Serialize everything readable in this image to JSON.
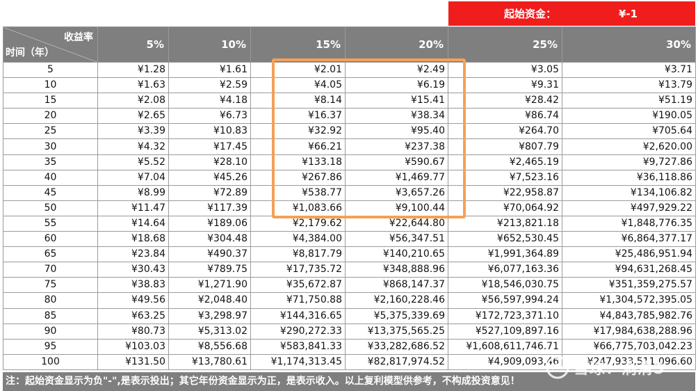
{
  "starting_capital": {
    "label": "起始资金：",
    "value": "¥-1"
  },
  "corner_header": {
    "top": "收益率",
    "bottom": "时间（年）"
  },
  "rate_headers": [
    "5%",
    "10%",
    "15%",
    "20%",
    "25%",
    "30%"
  ],
  "rows": [
    {
      "year": "5",
      "values": [
        "¥1.28",
        "¥1.61",
        "¥2.01",
        "¥2.49",
        "¥3.05",
        "¥3.71"
      ]
    },
    {
      "year": "10",
      "values": [
        "¥1.63",
        "¥2.59",
        "¥4.05",
        "¥6.19",
        "¥9.31",
        "¥13.79"
      ]
    },
    {
      "year": "15",
      "values": [
        "¥2.08",
        "¥4.18",
        "¥8.14",
        "¥15.41",
        "¥28.42",
        "¥51.19"
      ]
    },
    {
      "year": "20",
      "values": [
        "¥2.65",
        "¥6.73",
        "¥16.37",
        "¥38.34",
        "¥86.74",
        "¥190.05"
      ]
    },
    {
      "year": "25",
      "values": [
        "¥3.39",
        "¥10.83",
        "¥32.92",
        "¥95.40",
        "¥264.70",
        "¥705.64"
      ]
    },
    {
      "year": "30",
      "values": [
        "¥4.32",
        "¥17.45",
        "¥66.21",
        "¥237.38",
        "¥807.79",
        "¥2,620.00"
      ]
    },
    {
      "year": "35",
      "values": [
        "¥5.52",
        "¥28.10",
        "¥133.18",
        "¥590.67",
        "¥2,465.19",
        "¥9,727.86"
      ]
    },
    {
      "year": "40",
      "values": [
        "¥7.04",
        "¥45.26",
        "¥267.86",
        "¥1,469.77",
        "¥7,523.16",
        "¥36,118.86"
      ]
    },
    {
      "year": "45",
      "values": [
        "¥8.99",
        "¥72.89",
        "¥538.77",
        "¥3,657.26",
        "¥22,958.87",
        "¥134,106.82"
      ]
    },
    {
      "year": "50",
      "values": [
        "¥11.47",
        "¥117.39",
        "¥1,083.66",
        "¥9,100.44",
        "¥70,064.92",
        "¥497,929.22"
      ]
    },
    {
      "year": "55",
      "values": [
        "¥14.64",
        "¥189.06",
        "¥2,179.62",
        "¥22,644.80",
        "¥213,821.18",
        "¥1,848,776.35"
      ]
    },
    {
      "year": "60",
      "values": [
        "¥18.68",
        "¥304.48",
        "¥4,384.00",
        "¥56,347.51",
        "¥652,530.45",
        "¥6,864,377.17"
      ]
    },
    {
      "year": "65",
      "values": [
        "¥23.84",
        "¥490.37",
        "¥8,817.79",
        "¥140,210.65",
        "¥1,991,364.89",
        "¥25,486,951.94"
      ]
    },
    {
      "year": "70",
      "values": [
        "¥30.43",
        "¥789.75",
        "¥17,735.72",
        "¥348,888.96",
        "¥6,077,163.36",
        "¥94,631,268.45"
      ]
    },
    {
      "year": "75",
      "values": [
        "¥38.83",
        "¥1,271.90",
        "¥35,672.87",
        "¥868,147.37",
        "¥18,546,030.75",
        "¥351,359,275.57"
      ]
    },
    {
      "year": "80",
      "values": [
        "¥49.56",
        "¥2,048.40",
        "¥71,750.88",
        "¥2,160,228.46",
        "¥56,597,994.24",
        "¥1,304,572,395.05"
      ]
    },
    {
      "year": "85",
      "values": [
        "¥63.25",
        "¥3,298.97",
        "¥144,316.65",
        "¥5,375,339.69",
        "¥172,723,371.10",
        "¥4,843,785,982.76"
      ]
    },
    {
      "year": "90",
      "values": [
        "¥80.73",
        "¥5,313.02",
        "¥290,272.33",
        "¥13,375,565.25",
        "¥527,109,897.16",
        "¥17,984,638,288.96"
      ]
    },
    {
      "year": "95",
      "values": [
        "¥103.03",
        "¥8,556.68",
        "¥583,841.33",
        "¥33,282,686.52",
        "¥1,608,611,746.71",
        "¥66,775,703,042.23"
      ]
    },
    {
      "year": "100",
      "values": [
        "¥131.50",
        "¥13,780.61",
        "¥1,174,313.45",
        "¥82,817,974.52",
        "¥4,909,093,46",
        "¥247,933,511,096.60"
      ]
    }
  ],
  "footer_note": "注：起始资金显示为负\"-\",是表示投出；其它年份资金显示为正，是表示收入。以上复利模型供参考，不构成投资意见！",
  "watermark": {
    "text": "雪球：淌清5",
    "icon": "snowball-logo-icon"
  },
  "colors": {
    "capital_bg": "#f01d1d",
    "header_bg": "#7f7f7f",
    "highlight": "#f3a157"
  }
}
